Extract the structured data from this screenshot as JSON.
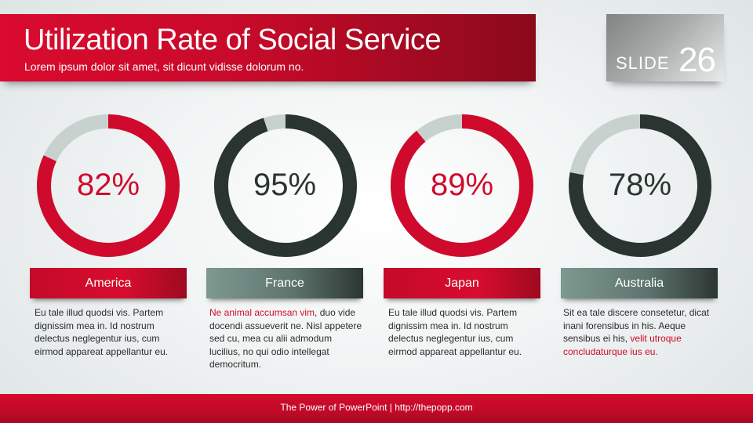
{
  "header": {
    "title": "Utilization Rate of Social Service",
    "subtitle": "Lorem ipsum dolor sit amet, sit dicunt vidisse dolorum no.",
    "slide_word": "SLIDE",
    "slide_number": "26"
  },
  "colors": {
    "red": "#d00a2c",
    "dark": "#2a3431",
    "track": "#c7d2ce"
  },
  "panels": [
    {
      "percent_label": "82%",
      "value": 82,
      "country": "America",
      "theme": "red",
      "desc_pre": "",
      "desc_highlight": "",
      "desc_post": "Eu tale illud quodsi vis. Partem dignissim mea in. Id nostrum delectus neglegentur ius, cum eirmod appareat appellantur eu."
    },
    {
      "percent_label": "95%",
      "value": 95,
      "country": "France",
      "theme": "dark",
      "desc_pre": "",
      "desc_highlight": "Ne animal accumsan vim",
      "desc_post": ", duo vide docendi assueverit ne. Nisl appetere sed cu, mea cu alii admodum lucilius, no qui odio intellegat democritum."
    },
    {
      "percent_label": "89%",
      "value": 89,
      "country": "Japan",
      "theme": "red",
      "desc_pre": "",
      "desc_highlight": "",
      "desc_post": "Eu tale illud quodsi vis. Partem dignissim mea in. Id nostrum delectus neglegentur ius, cum eirmod appareat appellantur eu."
    },
    {
      "percent_label": "78%",
      "value": 78,
      "country": "Australia",
      "theme": "dark",
      "desc_pre": "Sit ea tale discere consetetur, dicat inani forensibus in his. Aeque sensibus ei his, ",
      "desc_highlight": "velit utroque concludaturque ius eu.",
      "desc_post": ""
    }
  ],
  "footer": {
    "text": "The Power of PowerPoint  |  http://thepopp.com"
  }
}
